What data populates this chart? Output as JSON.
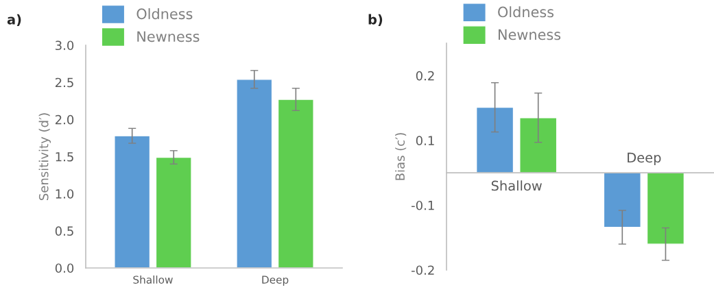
{
  "chart_data": [
    {
      "type": "bar",
      "title": "a)",
      "ylabel": "Sensitivity (d′)",
      "categories": [
        "Shallow",
        "Deep"
      ],
      "legend": "top",
      "series": [
        {
          "name": "Oldness",
          "color": "#5b9bd5",
          "values": [
            1.78,
            2.54
          ],
          "errors": [
            0.1,
            0.12
          ]
        },
        {
          "name": "Newness",
          "color": "#5fce50",
          "values": [
            1.49,
            2.27
          ],
          "errors": [
            0.09,
            0.15
          ]
        }
      ],
      "ylim": [
        0,
        3.0
      ],
      "yticks": [
        {
          "value": 0,
          "label": "0.0"
        },
        0.5,
        {
          "value": 1,
          "label": "1.0"
        },
        1.5,
        {
          "value": 2,
          "label": "2.0"
        },
        2.5,
        {
          "value": 3,
          "label": "3.0"
        }
      ]
    },
    {
      "type": "bar",
      "title": "b)",
      "ylabel": "Bias (c′)",
      "categories": [
        "Shallow",
        "Deep"
      ],
      "legend": "top",
      "series": [
        {
          "name": "Oldness",
          "color": "#5b9bd5",
          "values": [
            0.101,
            -0.084
          ],
          "errors": [
            0.038,
            0.026
          ]
        },
        {
          "name": "Newness",
          "color": "#5fce50",
          "values": [
            0.085,
            -0.11
          ],
          "errors": [
            0.038,
            0.025
          ]
        }
      ],
      "ylim": [
        -0.15,
        0.2
      ],
      "yticks": [
        {
          "value": 0.15,
          "label": "0.2"
        },
        {
          "value": 0.05,
          "label": "0.1"
        },
        {
          "value": -0.05,
          "label": "-0.1"
        },
        {
          "value": -0.15,
          "label": "-0.2"
        }
      ]
    }
  ]
}
